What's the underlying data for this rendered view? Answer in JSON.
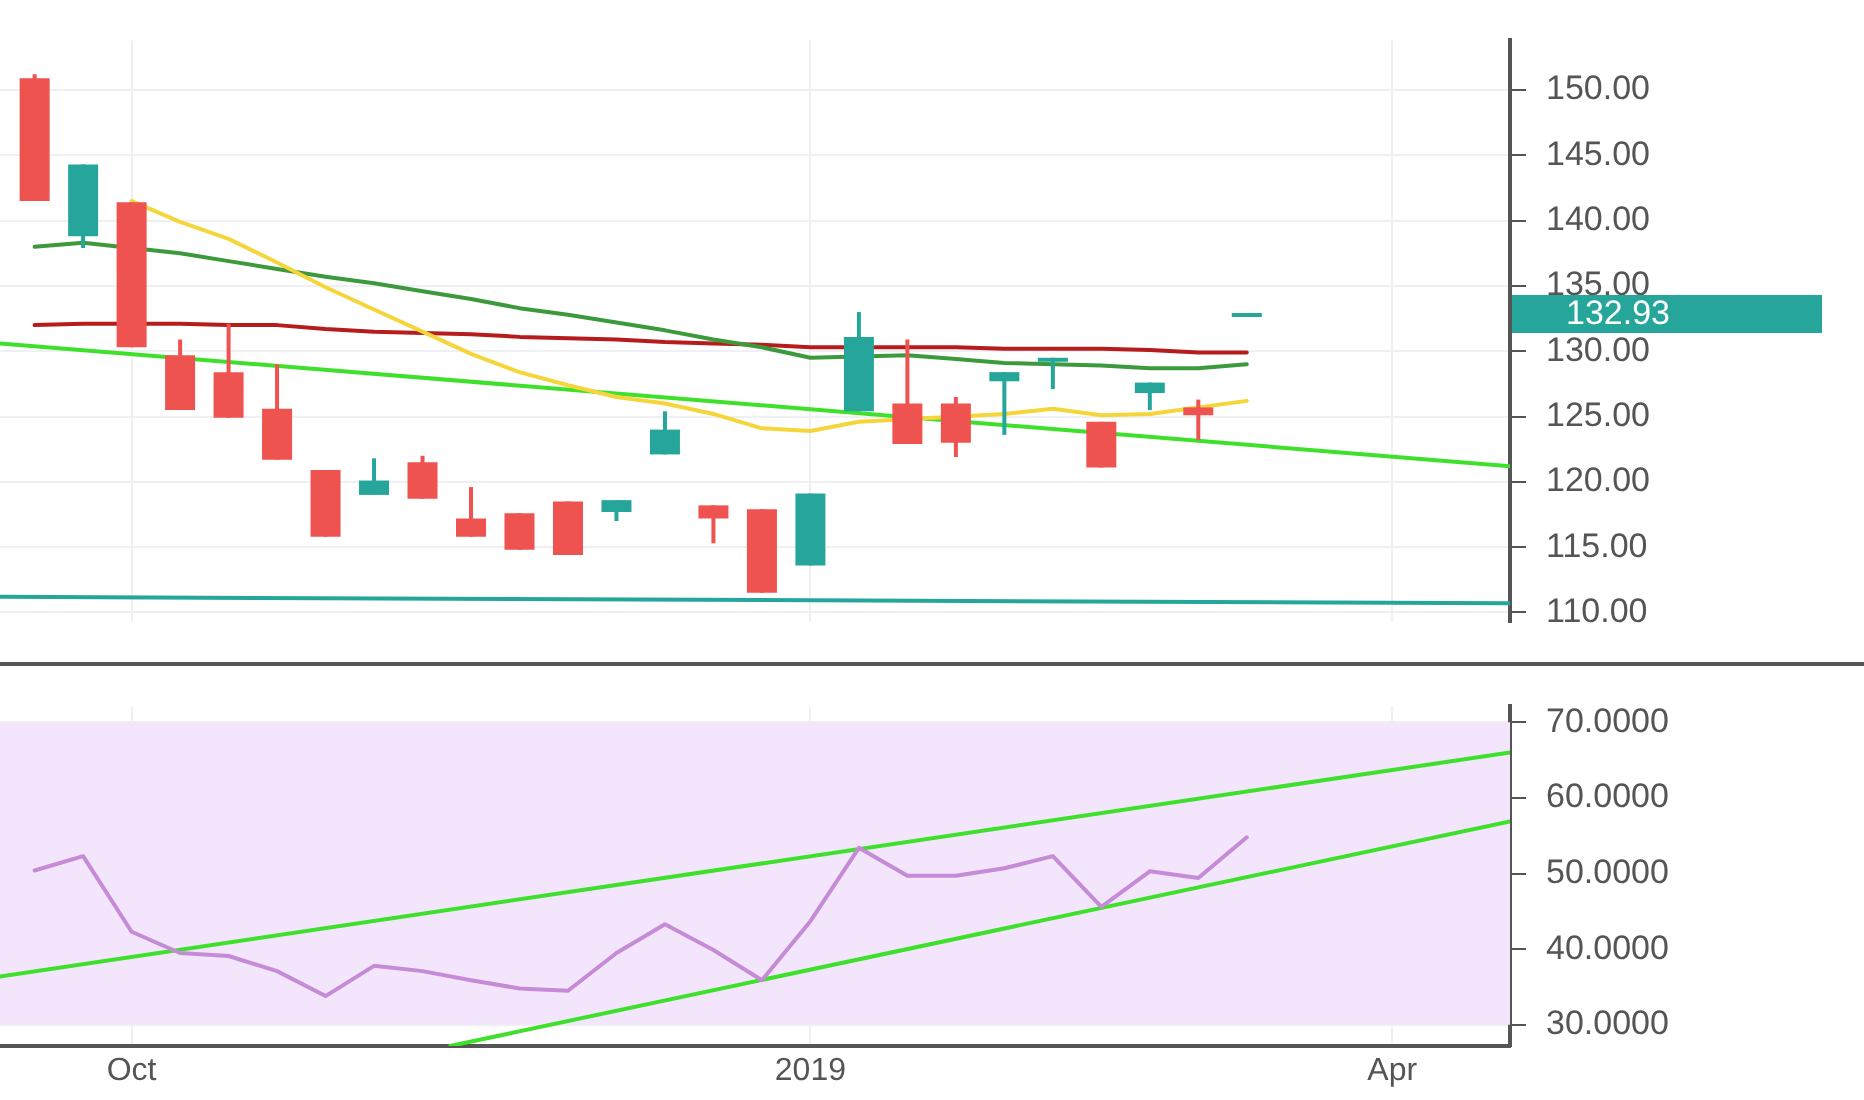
{
  "chart_data": [
    {
      "type": "candlestick",
      "x": [
        "2018-09-17",
        "2018-09-24",
        "2018-10-01",
        "2018-10-08",
        "2018-10-15",
        "2018-10-22",
        "2018-10-29",
        "2018-11-05",
        "2018-11-12",
        "2018-11-19",
        "2018-11-26",
        "2018-12-03",
        "2018-12-10",
        "2018-12-17",
        "2018-12-24",
        "2018-12-31",
        "2019-01-07",
        "2019-01-14",
        "2019-01-21",
        "2019-01-28",
        "2019-02-04",
        "2019-02-11",
        "2019-02-18",
        "2019-02-25",
        "2019-03-04",
        "2019-03-11"
      ],
      "ohlc": [
        [
          150.9,
          151.2,
          141.5,
          141.5
        ],
        [
          138.8,
          144.3,
          137.9,
          144.3
        ],
        [
          141.4,
          141.4,
          130.3,
          130.3
        ],
        [
          129.7,
          130.9,
          125.5,
          125.5
        ],
        [
          128.4,
          132.1,
          124.9,
          124.9
        ],
        [
          125.6,
          129.0,
          121.7,
          121.7
        ],
        [
          120.9,
          120.9,
          115.8,
          115.8
        ],
        [
          119.0,
          121.8,
          119.0,
          120.1
        ],
        [
          121.5,
          122.0,
          118.7,
          118.7
        ],
        [
          117.2,
          119.6,
          115.8,
          115.8
        ],
        [
          117.6,
          117.6,
          114.8,
          114.8
        ],
        [
          118.5,
          118.5,
          114.4,
          114.4
        ],
        [
          117.7,
          118.6,
          117.0,
          118.6
        ],
        [
          122.1,
          125.4,
          122.1,
          124.0
        ],
        [
          118.2,
          118.2,
          115.3,
          117.2
        ],
        [
          117.9,
          117.9,
          111.5,
          111.5
        ],
        [
          113.6,
          119.1,
          113.6,
          119.1
        ],
        [
          125.4,
          133.0,
          125.4,
          131.1
        ],
        [
          126.0,
          130.9,
          122.9,
          122.9
        ],
        [
          126.0,
          126.5,
          121.9,
          123.0
        ],
        [
          127.7,
          128.4,
          123.6,
          128.4
        ],
        [
          129.3,
          129.5,
          127.1,
          129.5
        ],
        [
          124.6,
          124.6,
          121.1,
          121.1
        ],
        [
          126.8,
          127.6,
          125.5,
          127.6
        ],
        [
          125.7,
          126.3,
          123.2,
          125.1
        ],
        [
          132.8,
          132.93,
          132.8,
          132.93
        ]
      ],
      "colors": [
        "#ef5350",
        "#26a69a",
        "#ef5350",
        "#ef5350",
        "#ef5350",
        "#ef5350",
        "#ef5350",
        "#26a69a",
        "#ef5350",
        "#ef5350",
        "#ef5350",
        "#ef5350",
        "#26a69a",
        "#26a69a",
        "#ef5350",
        "#ef5350",
        "#26a69a",
        "#26a69a",
        "#ef5350",
        "#ef5350",
        "#26a69a",
        "#26a69a",
        "#ef5350",
        "#26a69a",
        "#ef5350",
        "#26a69a"
      ],
      "series": [
        {
          "type": "line",
          "color": "#f5d63a",
          "values": [
            null,
            null,
            141.5,
            139.9,
            138.6,
            136.8,
            134.9,
            133.2,
            131.5,
            129.8,
            128.4,
            127.4,
            126.5,
            126.0,
            125.2,
            124.1,
            123.9,
            124.6,
            null,
            null,
            125.2,
            125.6,
            125.1,
            125.2,
            null,
            126.2
          ]
        },
        {
          "type": "line",
          "color": "#3c9a3c",
          "values": [
            138.0,
            138.3,
            null,
            137.5,
            136.9,
            136.3,
            135.7,
            135.2,
            134.6,
            134.0,
            133.3,
            132.8,
            132.2,
            131.6,
            130.9,
            130.3,
            129.5,
            null,
            129.7,
            129.4,
            129.1,
            129.0,
            128.9,
            128.7,
            128.7,
            129.0
          ]
        },
        {
          "type": "line",
          "color": "#b71c1c",
          "values": [
            132.0,
            132.1,
            null,
            132.1,
            132.0,
            132.0,
            131.7,
            131.5,
            131.4,
            131.3,
            131.1,
            131.0,
            130.9,
            130.7,
            130.6,
            130.5,
            130.3,
            null,
            130.3,
            130.3,
            130.2,
            130.2,
            130.2,
            130.1,
            129.9,
            129.9
          ]
        },
        {
          "type": "line",
          "color": "#3ee02c",
          "x": [
            "2018-09-12",
            "2019-04-18"
          ],
          "values": [
            130.6,
            121.2
          ]
        },
        {
          "type": "line",
          "color": "#26a69a",
          "x": [
            "2018-09-12",
            "2019-04-18"
          ],
          "values": [
            111.2,
            110.7
          ]
        }
      ],
      "xlim": [
        "2018-09-12",
        "2019-04-18"
      ],
      "xticks": [
        {
          "value": "2018-10-01",
          "label": null
        },
        {
          "value": "2019-01-07",
          "label": null
        },
        {
          "value": "2019-04-01",
          "label": null
        }
      ],
      "ylim": [
        109.3,
        153.8
      ],
      "yticks": [
        {
          "value": 110,
          "label": "110.00"
        },
        {
          "value": 115,
          "label": "115.00"
        },
        {
          "value": 120,
          "label": "120.00"
        },
        {
          "value": 125,
          "label": "125.00"
        },
        {
          "value": 130,
          "label": "130.00"
        },
        {
          "value": 135,
          "label": "135.00"
        },
        {
          "value": 140,
          "label": "140.00"
        },
        {
          "value": 145,
          "label": "145.00"
        },
        {
          "value": 150,
          "label": "150.00"
        }
      ],
      "annotations": [
        "132.93"
      ],
      "grid": true,
      "marker": "none",
      "tick_labels": "y"
    },
    {
      "type": "line",
      "x": [
        "2018-09-17",
        "2018-09-24",
        "2018-10-01",
        "2018-10-08",
        "2018-10-15",
        "2018-10-22",
        "2018-10-29",
        "2018-11-05",
        "2018-11-12",
        "2018-11-19",
        "2018-11-26",
        "2018-12-03",
        "2018-12-10",
        "2018-12-17",
        "2018-12-24",
        "2018-12-31",
        "2019-01-07",
        "2019-01-14",
        "2019-01-21",
        "2019-01-28",
        "2019-02-04",
        "2019-02-11",
        "2019-02-18",
        "2019-02-25",
        "2019-03-04",
        "2019-03-11"
      ],
      "series": [
        {
          "color": "#c58bd6",
          "values": [
            50.4,
            52.3,
            42.3,
            39.5,
            39.1,
            37.1,
            33.8,
            37.8,
            37.1,
            35.9,
            34.8,
            34.5,
            39.5,
            43.3,
            39.9,
            35.9,
            43.7,
            53.4,
            49.7,
            49.7,
            50.7,
            52.3,
            45.6,
            50.3,
            49.4,
            54.8
          ]
        },
        {
          "type": "line",
          "color": "#3ee02c",
          "x": [
            "2018-09-12",
            "2019-04-18"
          ],
          "values": [
            36.4,
            66.0
          ]
        },
        {
          "type": "line",
          "color": "#3ee02c",
          "x": [
            "2018-11-16",
            "2019-04-18"
          ],
          "values": [
            27.2,
            56.9
          ]
        }
      ],
      "xlim": [
        "2018-09-12",
        "2019-04-18"
      ],
      "xticks": [
        {
          "value": "2018-10-01",
          "label": "Oct"
        },
        {
          "value": "2019-01-07",
          "label": "2019"
        },
        {
          "value": "2019-04-01",
          "label": "Apr"
        }
      ],
      "ylim": [
        27.2,
        72.1
      ],
      "yticks": [
        {
          "value": 30,
          "label": "30.0000"
        },
        {
          "value": 40,
          "label": "40.0000"
        },
        {
          "value": 50,
          "label": "50.0000"
        },
        {
          "value": 60,
          "label": "60.0000"
        },
        {
          "value": 70,
          "label": "70.0000"
        }
      ],
      "bands": [
        {
          "axis": "y",
          "from": 30,
          "to": 70,
          "color": "#f3e6fc"
        }
      ],
      "grid": true,
      "marker": "none"
    }
  ]
}
